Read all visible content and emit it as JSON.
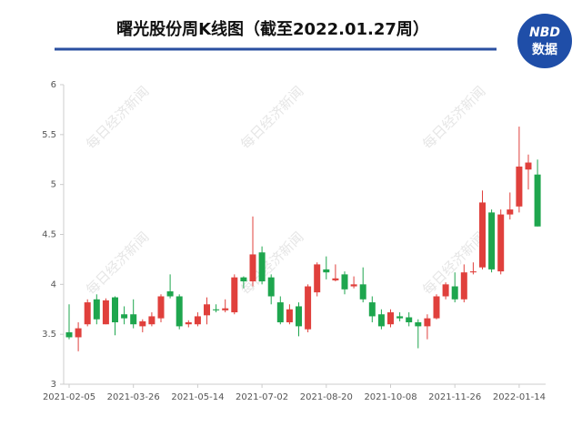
{
  "chart_data": {
    "type": "candlestick",
    "title": "曙光股份周K线图（截至2022.01.27周）",
    "logo": [
      "NBD",
      "数据"
    ],
    "watermark": "每日经济新闻",
    "x": [
      "2021-02-05",
      null,
      null,
      null,
      null,
      null,
      null,
      "2021-03-26",
      null,
      null,
      null,
      null,
      null,
      null,
      "2021-05-14",
      null,
      null,
      null,
      null,
      null,
      null,
      "2021-07-02",
      null,
      null,
      null,
      null,
      null,
      null,
      "2021-08-20",
      null,
      null,
      null,
      null,
      null,
      null,
      "2021-10-08",
      null,
      null,
      null,
      null,
      null,
      null,
      "2021-11-26",
      null,
      null,
      null,
      null,
      null,
      null,
      "2022-01-14",
      null,
      null
    ],
    "open": [
      3.52,
      3.47,
      3.6,
      3.85,
      3.6,
      3.87,
      3.7,
      3.7,
      3.58,
      3.6,
      3.66,
      3.93,
      3.88,
      3.6,
      3.6,
      3.69,
      3.75,
      3.74,
      3.72,
      4.07,
      4.03,
      4.32,
      4.07,
      3.82,
      3.62,
      3.78,
      3.55,
      3.92,
      4.15,
      4.04,
      4.1,
      3.98,
      4.0,
      3.82,
      3.7,
      3.6,
      3.68,
      3.67,
      3.62,
      3.58,
      3.66,
      3.88,
      3.98,
      3.85,
      4.12,
      4.17,
      4.72,
      4.13,
      4.7,
      4.78,
      5.15,
      5.1
    ],
    "close": [
      3.47,
      3.56,
      3.82,
      3.65,
      3.84,
      3.62,
      3.66,
      3.6,
      3.63,
      3.68,
      3.88,
      3.88,
      3.58,
      3.62,
      3.68,
      3.8,
      3.74,
      3.76,
      4.07,
      4.03,
      4.3,
      4.03,
      3.88,
      3.62,
      3.75,
      3.58,
      3.98,
      4.2,
      4.12,
      4.06,
      3.95,
      4.0,
      3.85,
      3.68,
      3.58,
      3.72,
      3.66,
      3.62,
      3.58,
      3.66,
      3.88,
      4.0,
      3.85,
      4.12,
      4.13,
      4.82,
      4.15,
      4.7,
      4.75,
      5.18,
      5.22,
      4.58
    ],
    "high": [
      3.8,
      3.62,
      3.85,
      3.9,
      3.86,
      3.88,
      3.78,
      3.85,
      3.65,
      3.72,
      3.9,
      4.1,
      3.9,
      3.64,
      3.72,
      3.87,
      3.8,
      3.85,
      4.1,
      4.08,
      4.68,
      4.38,
      4.1,
      3.88,
      3.8,
      3.82,
      4.0,
      4.22,
      4.28,
      4.2,
      4.13,
      4.08,
      4.17,
      3.88,
      3.75,
      3.75,
      3.72,
      3.72,
      3.65,
      3.7,
      3.9,
      4.02,
      4.12,
      4.2,
      4.22,
      4.94,
      4.75,
      4.75,
      4.92,
      5.58,
      5.3,
      5.25
    ],
    "low": [
      3.45,
      3.33,
      3.58,
      3.6,
      3.6,
      3.49,
      3.6,
      3.56,
      3.52,
      3.58,
      3.62,
      3.86,
      3.55,
      3.57,
      3.58,
      3.6,
      3.72,
      3.72,
      3.7,
      3.96,
      3.98,
      4.0,
      3.8,
      3.6,
      3.6,
      3.48,
      3.52,
      3.88,
      4.05,
      4.03,
      3.9,
      3.96,
      3.82,
      3.62,
      3.55,
      3.57,
      3.63,
      3.58,
      3.36,
      3.45,
      3.65,
      3.85,
      3.82,
      3.82,
      4.1,
      4.15,
      4.12,
      4.1,
      4.65,
      4.72,
      4.95,
      4.58
    ],
    "up_color": "#e0403c",
    "down_color": "#1ea64e",
    "ylim": [
      3,
      6
    ],
    "yticks": [
      3,
      3.5,
      4,
      4.5,
      5,
      5.5,
      6
    ]
  }
}
